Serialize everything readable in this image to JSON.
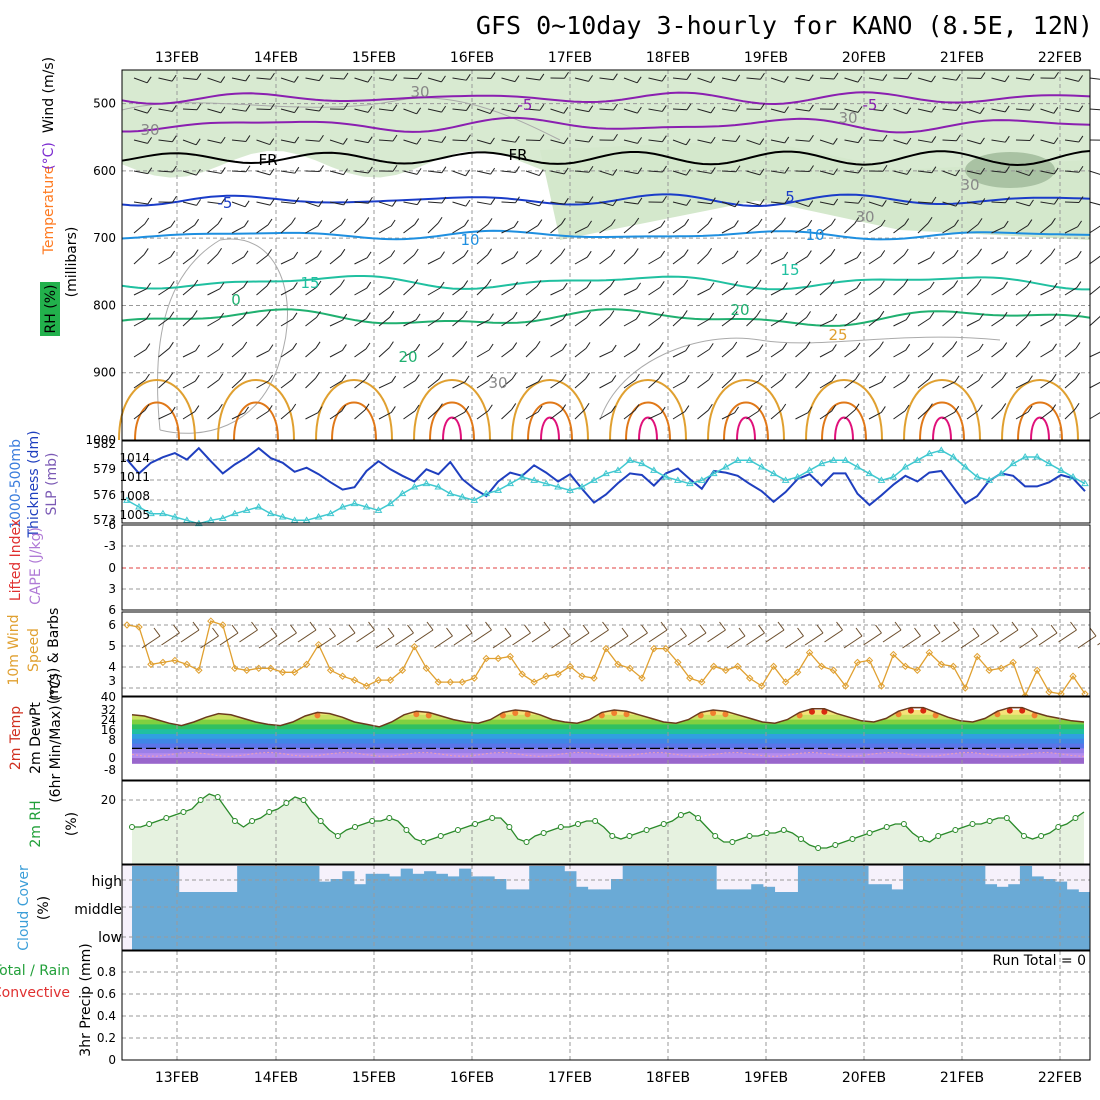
{
  "title": "GFS 0~10day 3-hourly for KANO (8.5E, 12N)",
  "dates": [
    "13FEB",
    "14FEB",
    "15FEB",
    "16FEB",
    "17FEB",
    "18FEB",
    "19FEB",
    "20FEB",
    "21FEB",
    "22FEB"
  ],
  "colors": {
    "purple": "#8a1fb0",
    "blue_dark": "#1a3cc8",
    "blue_mid": "#1e8fe0",
    "teal": "#20c0a0",
    "green": "#20b070",
    "orange": "#e0a030",
    "orange_dark": "#e07818",
    "magenta": "#e0107a",
    "rh_fill": "#d4e8cc",
    "slp": "#40c8d0",
    "thickness": "#1f3fbf",
    "wind10": "#e0a030"
  },
  "panels": {
    "upper": {
      "ylabel_parts": [
        "RH (%)",
        "Temperature",
        "(°C)",
        "Wind (m/s)"
      ],
      "ylabel_units": "(millibars)",
      "yticks": [
        "500",
        "600",
        "700",
        "800",
        "900",
        "1000"
      ],
      "contour_labels": [
        "-5",
        "-5",
        "FR",
        "FR",
        "-5",
        "5",
        "10",
        "10",
        "15",
        "15",
        "20",
        "20",
        "25",
        "0",
        "30",
        "30",
        "30",
        "30",
        "30",
        "30"
      ]
    },
    "pressure": {
      "ylabel": [
        "1000-500mb",
        "Thickness (dm)",
        "SLP (mb)"
      ],
      "yticks_left": [
        "582",
        "579",
        "576",
        "573"
      ],
      "yticks_right": [
        "1014",
        "1011",
        "1008",
        "1005"
      ]
    },
    "lifted": {
      "ylabel": [
        "Lifted Index",
        "CAPE (J/kg)"
      ],
      "yticks": [
        "-6",
        "-3",
        "0",
        "3",
        "6"
      ]
    },
    "wind10m": {
      "ylabel": [
        "10m Wind",
        "Speed",
        "(m/s) & Barbs"
      ],
      "yticks": [
        "6",
        "5",
        "4",
        "3"
      ]
    },
    "temp2m": {
      "ylabel": [
        "2m Temp",
        "2m DewPt",
        "(6hr Min/Max) (°C)"
      ],
      "yticks": [
        "40",
        "32",
        "24",
        "16",
        "8",
        "0",
        "-8"
      ]
    },
    "rh2m": {
      "ylabel": [
        "2m RH",
        "(%)"
      ],
      "yticks": [
        "20"
      ]
    },
    "cloud": {
      "ylabel": [
        "Cloud Cover",
        "(%)"
      ],
      "yticks": [
        "high",
        "middle",
        "low"
      ]
    },
    "precip": {
      "ylabel": [
        "Total / Rain",
        "Convective",
        "3hr Precip (mm)"
      ],
      "yticks": [
        "0.8",
        "0.6",
        "0.4",
        "0.2",
        "0"
      ],
      "run_total": "Run Total = 0"
    }
  },
  "chart_data": [
    {
      "type": "line",
      "title": "1000-500mb Thickness (dm)",
      "series": [
        {
          "name": "1000-500mb Thickness (dm)",
          "values": [
            580.2,
            578.5,
            579.8,
            580.5,
            581.0,
            580.2,
            581.6,
            580.0,
            578.5,
            579.6,
            580.5,
            581.6,
            580.4,
            579.8,
            578.7,
            579.2,
            578.4,
            577.4,
            576.5,
            576.8,
            578.8,
            580.0,
            579.0,
            578.2,
            577.5,
            579.0,
            578.4,
            579.9,
            577.8,
            576.6,
            575.7,
            577.5,
            578.6,
            578.2,
            579.5,
            578.6,
            577.5,
            578.4,
            576.6,
            574.9,
            575.9,
            577.3,
            578.5,
            578.3,
            577.0,
            578.5,
            579.1,
            577.8,
            576.6,
            578.8,
            578.6,
            578.2,
            577.2,
            576.3,
            575.0,
            576.2,
            577.8,
            578.4,
            577.0,
            578.5,
            578.5,
            576.0,
            574.6,
            575.8,
            577.1,
            578.2,
            577.5,
            578.6,
            578.8,
            576.8,
            574.8,
            575.7,
            577.6,
            578.5,
            578.2,
            576.9,
            576.9,
            577.4,
            578.3,
            577.9,
            576.3
          ]
        }
      ]
    },
    {
      "type": "line",
      "title": "SLP (mb)",
      "series": [
        {
          "name": "SLP (mb)",
          "values": [
            1007.5,
            1006.5,
            1005.5,
            1005.5,
            1005.0,
            1004.5,
            1004.0,
            1004.5,
            1004.8,
            1005.5,
            1006.0,
            1006.5,
            1005.5,
            1005.0,
            1004.5,
            1004.5,
            1005.0,
            1005.5,
            1006.5,
            1007.0,
            1006.5,
            1006.0,
            1007.0,
            1008.5,
            1009.5,
            1010.0,
            1009.5,
            1008.5,
            1008.0,
            1007.5,
            1008.5,
            1009.0,
            1010.0,
            1011.0,
            1010.5,
            1010.0,
            1009.5,
            1009.0,
            1009.5,
            1010.5,
            1011.5,
            1012.0,
            1013.5,
            1013.0,
            1012.0,
            1011.0,
            1010.5,
            1010.0,
            1010.5,
            1011.5,
            1012.5,
            1013.5,
            1013.5,
            1012.5,
            1011.5,
            1010.5,
            1011.0,
            1012.0,
            1013.0,
            1013.5,
            1013.5,
            1012.5,
            1011.5,
            1010.5,
            1011.0,
            1012.5,
            1013.5,
            1014.5,
            1015.0,
            1014.0,
            1012.5,
            1011.0,
            1010.5,
            1011.5,
            1013.0,
            1014.0,
            1014.0,
            1013.0,
            1012.0,
            1011.0,
            1010.0
          ]
        }
      ]
    },
    {
      "type": "line",
      "title": "10m Wind Speed (m/s)",
      "series": [
        {
          "name": "10m Wind Speed (m/s)",
          "values": [
            6.2,
            6.1,
            4.2,
            4.3,
            4.4,
            4.2,
            3.9,
            6.4,
            6.2,
            4.0,
            3.9,
            4.0,
            4.0,
            3.8,
            3.8,
            4.2,
            5.2,
            3.9,
            3.6,
            3.4,
            3.1,
            3.4,
            3.4,
            3.9,
            5.1,
            4.0,
            3.3,
            3.3,
            3.3,
            3.5,
            4.5,
            4.5,
            4.6,
            3.7,
            3.3,
            3.6,
            3.7,
            4.1,
            3.6,
            3.5,
            5.0,
            4.2,
            4.0,
            3.5,
            5.0,
            5.0,
            4.3,
            3.5,
            3.3,
            4.1,
            3.9,
            4.1,
            3.5,
            3.1,
            4.1,
            3.3,
            3.8,
            4.8,
            4.1,
            3.9,
            3.1,
            4.3,
            4.4,
            3.1,
            4.7,
            4.1,
            3.9,
            4.8,
            4.2,
            4.1,
            3.0,
            4.6,
            3.9,
            4.0,
            4.3,
            2.6,
            3.9,
            2.8,
            2.7,
            3.6,
            2.7
          ]
        }
      ]
    },
    {
      "type": "area",
      "title": "2m Temp (°C)",
      "series": [
        {
          "name": "2m Temp (°C)",
          "values": [
            28,
            27,
            24,
            21,
            19,
            22,
            26,
            29,
            28,
            25,
            22,
            20,
            19,
            22,
            27,
            30,
            29,
            26,
            22,
            20,
            18,
            22,
            28,
            31,
            30,
            27,
            24,
            22,
            21,
            24,
            30,
            32,
            31,
            28,
            24,
            22,
            21,
            24,
            30,
            32,
            31,
            28,
            25,
            22,
            21,
            24,
            30,
            32,
            31,
            28,
            25,
            22,
            21,
            24,
            30,
            33,
            33,
            29,
            26,
            23,
            22,
            25,
            31,
            34,
            34,
            30,
            26,
            23,
            22,
            25,
            31,
            34,
            34,
            30,
            27,
            25,
            23,
            22
          ]
        }
      ]
    },
    {
      "type": "area",
      "title": "2m RH (%)",
      "series": [
        {
          "name": "2m RH (%)",
          "values": [
            12,
            12,
            13,
            14,
            15,
            16,
            17,
            18,
            21,
            23,
            22,
            18,
            14,
            12,
            14,
            15,
            17,
            18,
            20,
            22,
            21,
            17,
            14,
            11,
            9,
            11,
            12,
            13,
            14,
            14,
            15,
            14,
            11,
            8,
            7,
            8,
            9,
            10,
            11,
            12,
            13,
            14,
            15,
            15,
            12,
            8,
            7,
            9,
            10,
            11,
            12,
            12,
            13,
            14,
            14,
            12,
            9,
            8,
            9,
            10,
            11,
            12,
            13,
            14,
            16,
            17,
            15,
            12,
            9,
            7,
            7,
            8,
            9,
            9,
            10,
            10,
            11,
            10,
            8,
            6,
            5,
            5,
            6,
            7,
            8,
            9,
            10,
            11,
            12,
            13,
            13,
            10,
            8,
            7,
            9,
            10,
            11,
            12,
            13,
            13,
            14,
            15,
            15,
            12,
            9,
            8,
            9,
            10,
            12,
            13,
            15,
            17
          ]
        }
      ]
    },
    {
      "type": "bar",
      "title": "Cloud Cover high (%)",
      "series": [
        {
          "name": "high",
          "values": [
            100,
            100,
            100,
            100,
            0,
            0,
            0,
            0,
            0,
            100,
            100,
            100,
            100,
            100,
            100,
            100,
            100,
            100,
            100,
            100,
            100,
            100,
            100,
            100,
            100,
            100,
            100,
            100,
            100,
            100,
            100,
            100,
            100,
            100,
            100,
            100,
            100,
            100,
            100,
            100,
            100,
            100,
            100,
            100,
            100,
            100,
            100,
            100,
            100,
            100,
            100,
            100,
            100,
            100,
            100,
            0,
            0,
            100,
            100,
            100,
            100,
            100,
            100,
            100,
            100,
            100,
            100,
            100,
            100,
            100,
            100,
            100,
            100,
            100,
            100,
            100,
            100,
            100,
            100,
            100,
            100,
            100
          ]
        }
      ]
    },
    {
      "type": "bar",
      "title": "3hr Precip (mm)",
      "ylim": [
        0,
        0.8
      ],
      "series": [
        {
          "name": "Total / Rain",
          "values": [
            0,
            0,
            0,
            0,
            0,
            0,
            0,
            0,
            0,
            0
          ]
        }
      ]
    }
  ]
}
